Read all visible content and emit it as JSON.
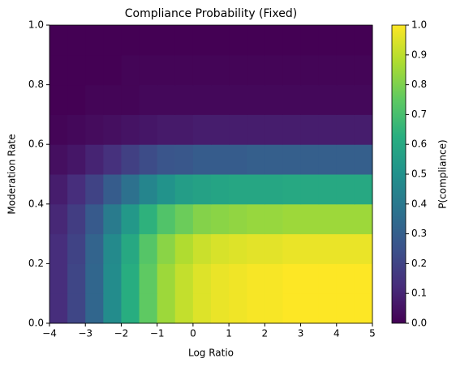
{
  "chart_data": {
    "type": "heatmap",
    "title": "Compliance Probability (Fixed)",
    "xlabel": "Log Ratio",
    "ylabel": "Moderation Rate",
    "colorbar_label": "P(compliance)",
    "colormap": "viridis",
    "x": [
      -3.75,
      -3.25,
      -2.75,
      -2.25,
      -1.75,
      -1.25,
      -0.75,
      -0.25,
      0.25,
      0.75,
      1.25,
      1.75,
      2.25,
      2.75,
      3.25,
      3.75,
      4.25,
      4.75
    ],
    "y": [
      0.05,
      0.15,
      0.25,
      0.35,
      0.45,
      0.55,
      0.65,
      0.75,
      0.85,
      0.95
    ],
    "z": [
      [
        0.13,
        0.21,
        0.33,
        0.48,
        0.62,
        0.75,
        0.85,
        0.91,
        0.95,
        0.97,
        0.98,
        0.99,
        0.99,
        1,
        1,
        1,
        1,
        1
      ],
      [
        0.13,
        0.21,
        0.33,
        0.48,
        0.62,
        0.75,
        0.85,
        0.91,
        0.95,
        0.97,
        0.98,
        0.99,
        0.99,
        1,
        1,
        1,
        1,
        1
      ],
      [
        0.13,
        0.2,
        0.32,
        0.47,
        0.6,
        0.73,
        0.82,
        0.88,
        0.92,
        0.94,
        0.95,
        0.96,
        0.96,
        0.97,
        0.97,
        0.97,
        0.97,
        0.97
      ],
      [
        0.11,
        0.18,
        0.28,
        0.41,
        0.53,
        0.64,
        0.72,
        0.77,
        0.81,
        0.82,
        0.83,
        0.84,
        0.84,
        0.85,
        0.85,
        0.85,
        0.85,
        0.85
      ],
      [
        0.08,
        0.13,
        0.2,
        0.29,
        0.37,
        0.45,
        0.51,
        0.55,
        0.57,
        0.58,
        0.59,
        0.59,
        0.59,
        0.6,
        0.6,
        0.6,
        0.6,
        0.6
      ],
      [
        0.04,
        0.06,
        0.1,
        0.14,
        0.19,
        0.23,
        0.26,
        0.27,
        0.29,
        0.29,
        0.29,
        0.3,
        0.3,
        0.3,
        0.3,
        0.3,
        0.3,
        0.3
      ],
      [
        0.01,
        0.02,
        0.03,
        0.04,
        0.05,
        0.06,
        0.07,
        0.07,
        0.08,
        0.08,
        0.08,
        0.08,
        0.08,
        0.08,
        0.08,
        0.08,
        0.08,
        0.08
      ],
      [
        0,
        0,
        0.01,
        0.01,
        0.01,
        0.02,
        0.02,
        0.02,
        0.02,
        0.02,
        0.02,
        0.02,
        0.02,
        0.02,
        0.02,
        0.02,
        0.02,
        0.02
      ],
      [
        0,
        0,
        0,
        0,
        0.01,
        0.01,
        0.01,
        0.01,
        0.01,
        0.01,
        0.01,
        0.01,
        0.01,
        0.01,
        0.01,
        0.01,
        0.01,
        0.01
      ],
      [
        0,
        0,
        0,
        0,
        0,
        0,
        0,
        0,
        0,
        0,
        0,
        0,
        0,
        0,
        0,
        0,
        0,
        0
      ]
    ],
    "xlim": [
      -4,
      5
    ],
    "xticks": [
      {
        "value": -4,
        "label": "−4"
      },
      {
        "value": -3,
        "label": "−3"
      },
      {
        "value": -2,
        "label": "−2"
      },
      {
        "value": -1,
        "label": "−1"
      },
      0,
      1,
      2,
      3,
      4,
      5
    ],
    "ylim": [
      0,
      1
    ],
    "yticks": [
      {
        "value": 0,
        "label": "0.0"
      },
      {
        "value": 0.2,
        "label": "0.2"
      },
      {
        "value": 0.4,
        "label": "0.4"
      },
      {
        "value": 0.6,
        "label": "0.6"
      },
      {
        "value": 0.8,
        "label": "0.8"
      },
      {
        "value": 1,
        "label": "1.0"
      }
    ],
    "clim": [
      0,
      1
    ],
    "cticks": [
      {
        "value": 0,
        "label": "0.0"
      },
      {
        "value": 0.1,
        "label": "0.1"
      },
      {
        "value": 0.2,
        "label": "0.2"
      },
      {
        "value": 0.3,
        "label": "0.3"
      },
      {
        "value": 0.4,
        "label": "0.4"
      },
      {
        "value": 0.5,
        "label": "0.5"
      },
      {
        "value": 0.6,
        "label": "0.6"
      },
      {
        "value": 0.7,
        "label": "0.7"
      },
      {
        "value": 0.8,
        "label": "0.8"
      },
      {
        "value": 0.9,
        "label": "0.9"
      },
      {
        "value": 1,
        "label": "1.0"
      }
    ]
  }
}
